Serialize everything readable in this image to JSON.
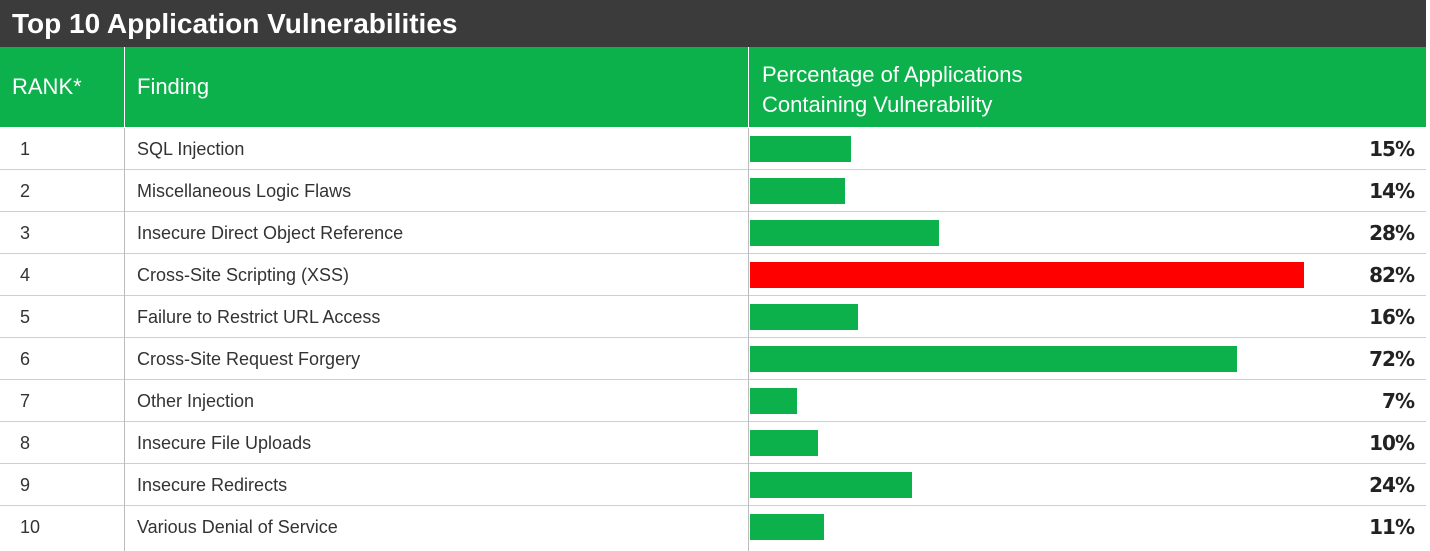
{
  "title": "Top 10 Application Vulnerabilities",
  "headers": {
    "rank": "RANK*",
    "finding": "Finding",
    "pct_line1": "Percentage of Applications",
    "pct_line2": "Containing Vulnerability"
  },
  "colors": {
    "title_bg": "#3b3b3b",
    "header_bg": "#0cb14b",
    "bar_default": "#0cb14b",
    "bar_highlight": "#ff0000"
  },
  "chart_data": {
    "type": "bar",
    "orientation": "horizontal",
    "title": "Top 10 Application Vulnerabilities",
    "xlim": [
      0,
      100
    ],
    "highlight_index": 3,
    "rows": [
      {
        "rank": "1",
        "finding": "SQL Injection",
        "value": 15,
        "label": "15%"
      },
      {
        "rank": "2",
        "finding": "Miscellaneous Logic Flaws",
        "value": 14,
        "label": "14%"
      },
      {
        "rank": "3",
        "finding": "Insecure Direct Object Reference",
        "value": 28,
        "label": "28%"
      },
      {
        "rank": "4",
        "finding": "Cross-Site Scripting (XSS)",
        "value": 82,
        "label": "82%"
      },
      {
        "rank": "5",
        "finding": "Failure to Restrict URL Access",
        "value": 16,
        "label": "16%"
      },
      {
        "rank": "6",
        "finding": "Cross-Site Request Forgery",
        "value": 72,
        "label": "72%"
      },
      {
        "rank": "7",
        "finding": "Other Injection",
        "value": 7,
        "label": "7%"
      },
      {
        "rank": "8",
        "finding": "Insecure File Uploads",
        "value": 10,
        "label": "10%"
      },
      {
        "rank": "9",
        "finding": "Insecure Redirects",
        "value": 24,
        "label": "24%"
      },
      {
        "rank": "10",
        "finding": "Various Denial of Service",
        "value": 11,
        "label": "11%"
      }
    ]
  }
}
